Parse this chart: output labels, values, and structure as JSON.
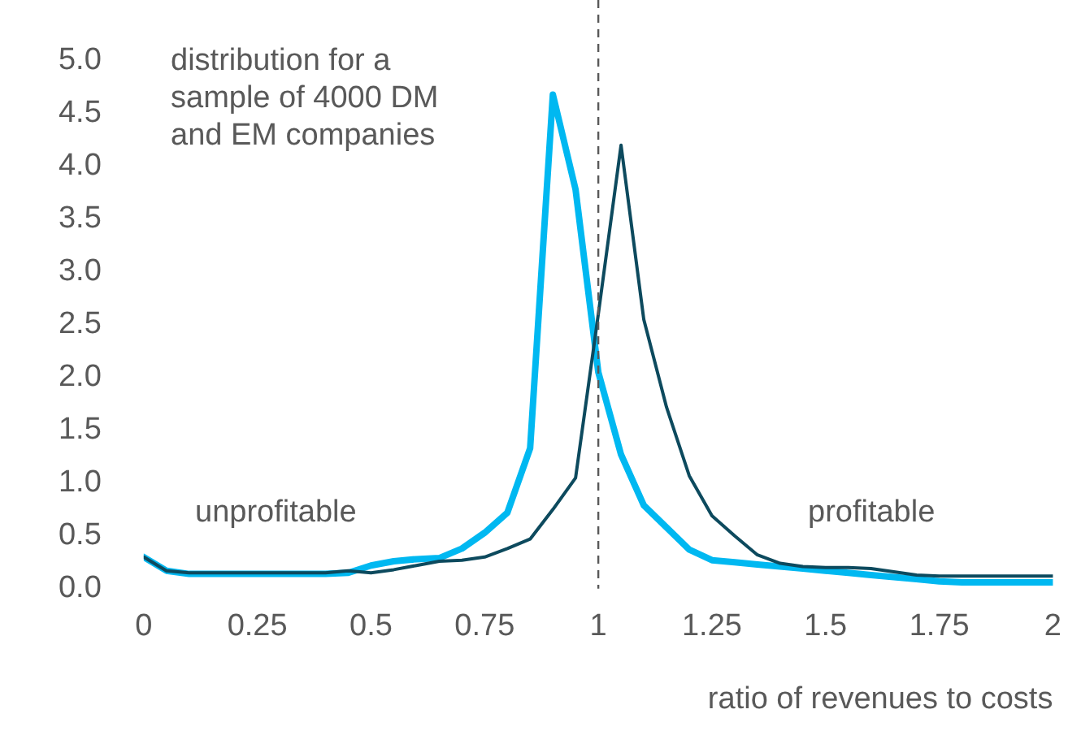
{
  "chart_data": {
    "type": "line",
    "xlabel": "ratio of revenues to costs",
    "annotations": [
      "distribution for a sample of 4000 DM and EM companies",
      "unprofitable",
      "profitable"
    ],
    "xlim": [
      0,
      2
    ],
    "xticks": [
      0,
      0.25,
      0.5,
      0.75,
      1,
      1.25,
      1.5,
      1.75,
      2
    ],
    "ylim": [
      0,
      5
    ],
    "yticks": [
      {
        "value": 0,
        "label": "0.0"
      },
      {
        "value": 0.5,
        "label": "0.5"
      },
      {
        "value": 1,
        "label": "1.0"
      },
      {
        "value": 1.5,
        "label": "1.5"
      },
      {
        "value": 2,
        "label": "2.0"
      },
      {
        "value": 2.5,
        "label": "2.5"
      },
      {
        "value": 3,
        "label": "3.0"
      },
      {
        "value": 3.5,
        "label": "3.5"
      },
      {
        "value": 4,
        "label": "4.0"
      },
      {
        "value": 4.5,
        "label": "4.5"
      },
      {
        "value": 5,
        "label": "5.0"
      }
    ],
    "x": [
      0,
      0.05,
      0.1,
      0.15,
      0.2,
      0.25,
      0.3,
      0.35,
      0.4,
      0.45,
      0.5,
      0.55,
      0.6,
      0.65,
      0.7,
      0.75,
      0.8,
      0.85,
      0.9,
      0.95,
      1,
      1.05,
      1.1,
      1.15,
      1.2,
      1.25,
      1.3,
      1.35,
      1.4,
      1.45,
      1.5,
      1.55,
      1.6,
      1.65,
      1.7,
      1.75,
      1.8,
      1.85,
      1.9,
      1.95,
      2
    ],
    "series": [
      {
        "color": "#0d4a5e",
        "values": [
          0.3,
          0.17,
          0.15,
          0.15,
          0.15,
          0.15,
          0.15,
          0.15,
          0.15,
          0.17,
          0.15,
          0.18,
          0.22,
          0.26,
          0.27,
          0.3,
          0.38,
          0.47,
          0.75,
          1.05,
          2.6,
          4.2,
          2.55,
          1.72,
          1.07,
          0.69,
          0.5,
          0.32,
          0.24,
          0.21,
          0.2,
          0.2,
          0.19,
          0.16,
          0.13,
          0.12,
          0.12,
          0.12,
          0.12,
          0.12,
          0.12
        ]
      },
      {
        "color": "#00b8f1",
        "values": [
          0.3,
          0.17,
          0.14,
          0.14,
          0.14,
          0.14,
          0.14,
          0.14,
          0.14,
          0.15,
          0.22,
          0.26,
          0.28,
          0.29,
          0.38,
          0.53,
          0.72,
          1.33,
          4.68,
          3.78,
          2.05,
          1.27,
          0.79,
          0.58,
          0.37,
          0.27,
          0.25,
          0.23,
          0.21,
          0.19,
          0.17,
          0.15,
          0.13,
          0.11,
          0.09,
          0.07,
          0.06,
          0.06,
          0.06,
          0.06,
          0.06
        ]
      }
    ],
    "ref_lines": [
      {
        "axis": "x",
        "value": 1,
        "color": "#595959",
        "line_style": "dashed"
      }
    ],
    "grid": false,
    "legend": false,
    "marker": "none",
    "line_style": "solid"
  }
}
